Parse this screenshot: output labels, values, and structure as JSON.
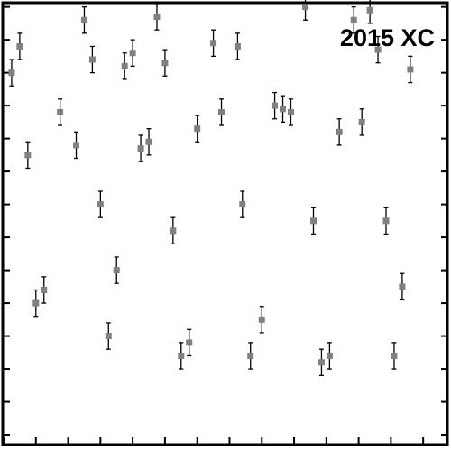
{
  "chart_data": {
    "type": "scatter",
    "title": "2015 XC",
    "xlabel": "",
    "ylabel": "",
    "grid": false,
    "error_bars": true,
    "error": 0.4,
    "xlim": [
      0,
      27.5
    ],
    "ylim": [
      -10.3,
      3.1
    ],
    "marker_color": "#808080",
    "errorbar_color": "#000000",
    "points": [
      {
        "x": 0.5,
        "y": 1.0
      },
      {
        "x": 1.0,
        "y": 1.8
      },
      {
        "x": 1.5,
        "y": -1.5
      },
      {
        "x": 2.0,
        "y": -6.0
      },
      {
        "x": 2.5,
        "y": -5.6
      },
      {
        "x": 3.5,
        "y": -0.2
      },
      {
        "x": 4.5,
        "y": -1.2
      },
      {
        "x": 5.0,
        "y": 2.6
      },
      {
        "x": 5.5,
        "y": 1.4
      },
      {
        "x": 6.0,
        "y": -3.0
      },
      {
        "x": 6.5,
        "y": -7.0
      },
      {
        "x": 7.0,
        "y": -5.0
      },
      {
        "x": 7.5,
        "y": 1.2
      },
      {
        "x": 8.0,
        "y": 1.6
      },
      {
        "x": 8.5,
        "y": -1.3
      },
      {
        "x": 9.0,
        "y": -1.1
      },
      {
        "x": 9.5,
        "y": 2.7
      },
      {
        "x": 10.0,
        "y": 1.3
      },
      {
        "x": 10.5,
        "y": -3.8
      },
      {
        "x": 11.0,
        "y": -7.6
      },
      {
        "x": 11.5,
        "y": -7.2
      },
      {
        "x": 12.0,
        "y": -0.7
      },
      {
        "x": 13.0,
        "y": 1.9
      },
      {
        "x": 13.5,
        "y": -0.2
      },
      {
        "x": 14.5,
        "y": 1.8
      },
      {
        "x": 14.8,
        "y": -3.0
      },
      {
        "x": 15.3,
        "y": -7.6
      },
      {
        "x": 16.0,
        "y": -6.5
      },
      {
        "x": 16.8,
        "y": 0.0
      },
      {
        "x": 17.3,
        "y": -0.1
      },
      {
        "x": 17.8,
        "y": -0.2
      },
      {
        "x": 18.7,
        "y": 3.0
      },
      {
        "x": 19.2,
        "y": -3.5
      },
      {
        "x": 19.7,
        "y": -7.8
      },
      {
        "x": 20.2,
        "y": -7.6
      },
      {
        "x": 20.8,
        "y": -0.8
      },
      {
        "x": 21.7,
        "y": 2.6
      },
      {
        "x": 22.2,
        "y": -0.5
      },
      {
        "x": 22.7,
        "y": 2.9
      },
      {
        "x": 23.2,
        "y": 1.7
      },
      {
        "x": 23.7,
        "y": -3.5
      },
      {
        "x": 24.2,
        "y": -7.6
      },
      {
        "x": 24.7,
        "y": -5.5
      },
      {
        "x": 25.2,
        "y": 1.1
      }
    ]
  }
}
